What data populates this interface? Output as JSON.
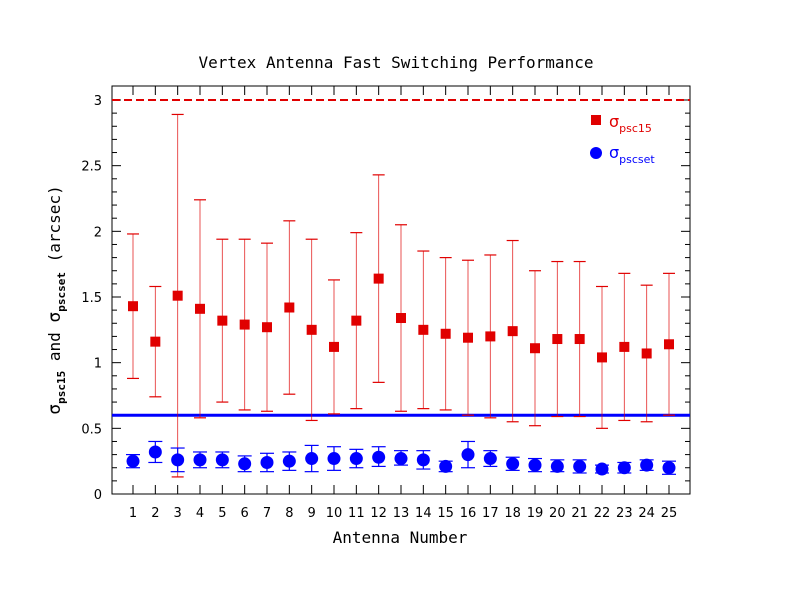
{
  "chart_data": {
    "type": "scatter",
    "title": "Vertex Antenna Fast Switching Performance",
    "xlabel": "Antenna Number",
    "ylabel": {
      "sym": "σ",
      "sub1": "psc15",
      "and": " and ",
      "sub2": "pscset",
      "unit": " (arcsec)"
    },
    "xlim": [
      0.05,
      25.95
    ],
    "ylim": [
      0,
      3
    ],
    "x_ticks": [
      "1",
      "2",
      "3",
      "4",
      "5",
      "6",
      "7",
      "8",
      "9",
      "10",
      "11",
      "12",
      "13",
      "14",
      "15",
      "16",
      "17",
      "18",
      "19",
      "20",
      "21",
      "22",
      "23",
      "24",
      "25"
    ],
    "y_ticks": [
      "0",
      "0.5",
      "1",
      "1.5",
      "2",
      "2.5",
      "3"
    ],
    "y_tick_values": [
      0,
      0.5,
      1,
      1.5,
      2,
      2.5,
      3
    ],
    "hlines": [
      {
        "y": 3.0,
        "color": "#e00000",
        "style": "dashed"
      },
      {
        "y": 0.6,
        "color": "#0000ff",
        "style": "solid"
      }
    ],
    "legend_position": "top-right",
    "series": [
      {
        "name": "σpsc15",
        "sym": "σ",
        "sub": "psc15",
        "color": "#e00000",
        "marker": "square",
        "x": [
          1,
          2,
          3,
          4,
          5,
          6,
          7,
          8,
          9,
          10,
          11,
          12,
          13,
          14,
          15,
          16,
          17,
          18,
          19,
          20,
          21,
          22,
          23,
          24,
          25
        ],
        "y": [
          1.43,
          1.16,
          1.51,
          1.41,
          1.32,
          1.29,
          1.27,
          1.42,
          1.25,
          1.12,
          1.32,
          1.64,
          1.34,
          1.25,
          1.22,
          1.19,
          1.2,
          1.24,
          1.11,
          1.18,
          1.18,
          1.04,
          1.12,
          1.07,
          1.14
        ],
        "ylow": [
          0.88,
          0.74,
          0.13,
          0.58,
          0.7,
          0.64,
          0.63,
          0.76,
          0.56,
          0.61,
          0.65,
          0.85,
          0.63,
          0.65,
          0.64,
          0.6,
          0.58,
          0.55,
          0.52,
          0.59,
          0.59,
          0.5,
          0.56,
          0.55,
          0.6
        ],
        "yhigh": [
          1.98,
          1.58,
          2.89,
          2.24,
          1.94,
          1.94,
          1.91,
          2.08,
          1.94,
          1.63,
          1.99,
          2.43,
          2.05,
          1.85,
          1.8,
          1.78,
          1.82,
          1.93,
          1.7,
          1.77,
          1.77,
          1.58,
          1.68,
          1.59,
          1.68
        ]
      },
      {
        "name": "σpscset",
        "sym": "σ",
        "sub": "pscset",
        "color": "#0000ff",
        "marker": "circle",
        "x": [
          1,
          2,
          3,
          4,
          5,
          6,
          7,
          8,
          9,
          10,
          11,
          12,
          13,
          14,
          15,
          16,
          17,
          18,
          19,
          20,
          21,
          22,
          23,
          24,
          25
        ],
        "y": [
          0.25,
          0.32,
          0.26,
          0.26,
          0.26,
          0.23,
          0.24,
          0.25,
          0.27,
          0.27,
          0.27,
          0.28,
          0.27,
          0.26,
          0.21,
          0.3,
          0.27,
          0.23,
          0.22,
          0.21,
          0.21,
          0.19,
          0.2,
          0.22,
          0.2
        ],
        "ylow": [
          0.2,
          0.24,
          0.17,
          0.2,
          0.2,
          0.17,
          0.17,
          0.18,
          0.17,
          0.18,
          0.2,
          0.21,
          0.22,
          0.19,
          0.17,
          0.2,
          0.21,
          0.18,
          0.17,
          0.17,
          0.16,
          0.16,
          0.16,
          0.18,
          0.15
        ],
        "yhigh": [
          0.3,
          0.4,
          0.35,
          0.32,
          0.32,
          0.29,
          0.31,
          0.32,
          0.37,
          0.36,
          0.34,
          0.36,
          0.33,
          0.33,
          0.25,
          0.4,
          0.33,
          0.28,
          0.27,
          0.26,
          0.26,
          0.22,
          0.24,
          0.26,
          0.25
        ]
      }
    ]
  }
}
